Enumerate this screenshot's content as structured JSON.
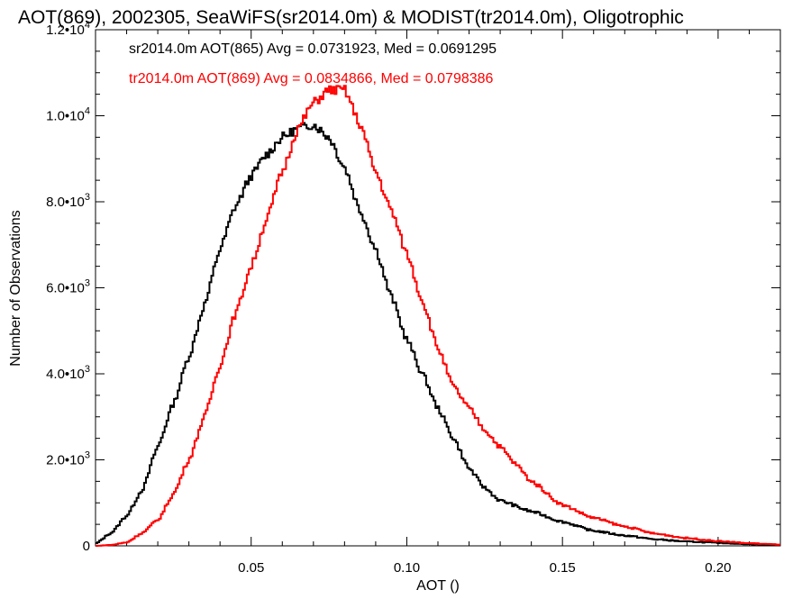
{
  "chart_data": {
    "type": "line",
    "title": "AOT(869), 2002305, SeaWiFS(sr2014.0m) & MODIST(tr2014.0m), Oligotrophic",
    "xlabel": "AOT ()",
    "ylabel": "Number of Observations",
    "xlim": [
      0.0,
      0.22
    ],
    "ylim": [
      0,
      12000
    ],
    "x_ticks": [
      {
        "value": 0.05,
        "label": "0.05"
      },
      {
        "value": 0.1,
        "label": "0.10"
      },
      {
        "value": 0.15,
        "label": "0.15"
      },
      {
        "value": 0.2,
        "label": "0.20"
      }
    ],
    "y_ticks": [
      {
        "value": 0,
        "label": "0",
        "mantissa": "",
        "exponent": ""
      },
      {
        "value": 2000,
        "label": "2.0•10³",
        "mantissa": "2.0•10",
        "exponent": "3"
      },
      {
        "value": 4000,
        "label": "4.0•10³",
        "mantissa": "4.0•10",
        "exponent": "3"
      },
      {
        "value": 6000,
        "label": "6.0•10³",
        "mantissa": "6.0•10",
        "exponent": "3"
      },
      {
        "value": 8000,
        "label": "8.0•10³",
        "mantissa": "8.0•10",
        "exponent": "3"
      },
      {
        "value": 10000,
        "label": "1.0•10⁴",
        "mantissa": "1.0•10",
        "exponent": "4"
      },
      {
        "value": 12000,
        "label": "1.2•10⁴",
        "mantissa": "1.2•10",
        "exponent": "4"
      }
    ],
    "grid": false,
    "legend_position": "top-left",
    "series": [
      {
        "name": "sr2014.0m AOT(865) Avg = 0.0731923, Med = 0.0691295",
        "color": "#000000",
        "x": [
          0.0,
          0.005,
          0.01,
          0.015,
          0.02,
          0.025,
          0.03,
          0.035,
          0.04,
          0.045,
          0.05,
          0.055,
          0.06,
          0.065,
          0.07,
          0.075,
          0.08,
          0.085,
          0.09,
          0.095,
          0.1,
          0.105,
          0.11,
          0.115,
          0.12,
          0.125,
          0.13,
          0.14,
          0.15,
          0.16,
          0.17,
          0.18,
          0.19,
          0.2,
          0.21,
          0.22
        ],
        "y": [
          50,
          300,
          700,
          1300,
          2300,
          3300,
          4400,
          5600,
          6900,
          7900,
          8600,
          9100,
          9500,
          9700,
          9800,
          9500,
          8800,
          7800,
          6900,
          5800,
          4800,
          4000,
          3200,
          2500,
          1800,
          1350,
          1050,
          800,
          560,
          350,
          240,
          150,
          100,
          70,
          40,
          20
        ]
      },
      {
        "name": "tr2014.0m AOT(869) Avg = 0.0834866, Med = 0.0798386",
        "color": "#ff0000",
        "x": [
          0.0,
          0.005,
          0.01,
          0.015,
          0.02,
          0.025,
          0.03,
          0.035,
          0.04,
          0.045,
          0.05,
          0.055,
          0.06,
          0.065,
          0.07,
          0.075,
          0.08,
          0.085,
          0.09,
          0.095,
          0.1,
          0.105,
          0.11,
          0.115,
          0.12,
          0.125,
          0.13,
          0.135,
          0.14,
          0.15,
          0.16,
          0.17,
          0.18,
          0.19,
          0.2,
          0.21,
          0.22
        ],
        "y": [
          0,
          20,
          80,
          300,
          600,
          1200,
          2000,
          3000,
          4200,
          5400,
          6500,
          7600,
          8700,
          9700,
          10300,
          10600,
          10600,
          9800,
          8700,
          7800,
          6800,
          5700,
          4600,
          3700,
          3200,
          2700,
          2300,
          1900,
          1500,
          950,
          650,
          450,
          280,
          180,
          110,
          60,
          30
        ]
      }
    ]
  }
}
